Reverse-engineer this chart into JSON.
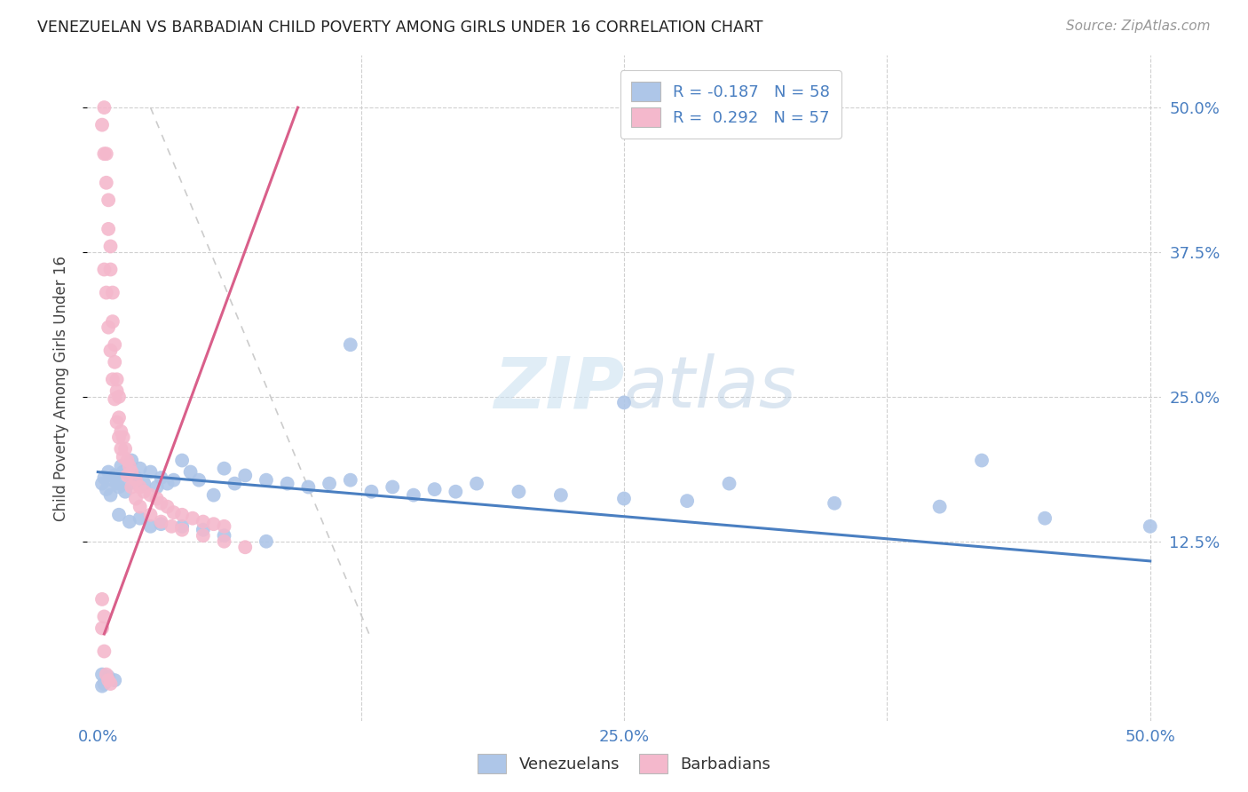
{
  "title": "VENEZUELAN VS BARBADIAN CHILD POVERTY AMONG GIRLS UNDER 16 CORRELATION CHART",
  "source": "Source: ZipAtlas.com",
  "ylabel": "Child Poverty Among Girls Under 16",
  "xlim": [
    -0.005,
    0.505
  ],
  "ylim": [
    -0.03,
    0.545
  ],
  "xticks": [
    0.0,
    0.125,
    0.25,
    0.375,
    0.5
  ],
  "xtick_labels": [
    "0.0%",
    "",
    "25.0%",
    "",
    "50.0%"
  ],
  "ytick_positions": [
    0.125,
    0.25,
    0.375,
    0.5
  ],
  "ytick_labels_right": [
    "12.5%",
    "25.0%",
    "37.5%",
    "50.0%"
  ],
  "watermark": "ZIPatlas",
  "venezuelan_color": "#aec6e8",
  "barbadian_color": "#f4b8cc",
  "venezuelan_line_color": "#4a7fc1",
  "barbadian_line_color": "#d95f8a",
  "dashed_line_color": "#cccccc",
  "venezuelan_scatter": {
    "x": [
      0.002,
      0.003,
      0.004,
      0.005,
      0.006,
      0.007,
      0.008,
      0.009,
      0.01,
      0.011,
      0.012,
      0.013,
      0.015,
      0.016,
      0.018,
      0.02,
      0.022,
      0.025,
      0.028,
      0.03,
      0.033,
      0.036,
      0.04,
      0.044,
      0.048,
      0.055,
      0.06,
      0.065,
      0.07,
      0.08,
      0.09,
      0.1,
      0.11,
      0.12,
      0.13,
      0.14,
      0.15,
      0.16,
      0.17,
      0.18,
      0.2,
      0.22,
      0.25,
      0.28,
      0.3,
      0.35,
      0.4,
      0.45,
      0.5,
      0.01,
      0.015,
      0.02,
      0.025,
      0.03,
      0.04,
      0.05,
      0.06,
      0.08
    ],
    "y": [
      0.175,
      0.18,
      0.17,
      0.185,
      0.165,
      0.178,
      0.182,
      0.175,
      0.172,
      0.19,
      0.185,
      0.168,
      0.175,
      0.195,
      0.18,
      0.188,
      0.175,
      0.185,
      0.172,
      0.18,
      0.175,
      0.178,
      0.195,
      0.185,
      0.178,
      0.165,
      0.188,
      0.175,
      0.182,
      0.178,
      0.175,
      0.172,
      0.175,
      0.178,
      0.168,
      0.172,
      0.165,
      0.17,
      0.168,
      0.175,
      0.168,
      0.165,
      0.162,
      0.16,
      0.175,
      0.158,
      0.155,
      0.145,
      0.138,
      0.148,
      0.142,
      0.145,
      0.138,
      0.14,
      0.138,
      0.135,
      0.13,
      0.125
    ]
  },
  "venezuelan_outliers": {
    "x": [
      0.002,
      0.005,
      0.008,
      0.002,
      0.003
    ],
    "y": [
      0.01,
      0.008,
      0.005,
      0.0,
      0.002
    ]
  },
  "venezuelan_high": {
    "x": [
      0.12,
      0.25,
      0.42
    ],
    "y": [
      0.295,
      0.245,
      0.195
    ]
  },
  "barbadian_scatter": {
    "x": [
      0.002,
      0.003,
      0.003,
      0.004,
      0.004,
      0.005,
      0.005,
      0.006,
      0.006,
      0.007,
      0.007,
      0.008,
      0.008,
      0.009,
      0.009,
      0.01,
      0.01,
      0.011,
      0.012,
      0.013,
      0.014,
      0.015,
      0.016,
      0.018,
      0.02,
      0.022,
      0.025,
      0.028,
      0.03,
      0.033,
      0.036,
      0.04,
      0.045,
      0.05,
      0.055,
      0.06,
      0.003,
      0.004,
      0.005,
      0.006,
      0.007,
      0.008,
      0.009,
      0.01,
      0.011,
      0.012,
      0.014,
      0.016,
      0.018,
      0.02,
      0.025,
      0.03,
      0.035,
      0.04,
      0.05,
      0.06,
      0.07
    ],
    "y": [
      0.485,
      0.5,
      0.46,
      0.46,
      0.435,
      0.42,
      0.395,
      0.38,
      0.36,
      0.34,
      0.315,
      0.295,
      0.28,
      0.265,
      0.255,
      0.25,
      0.232,
      0.22,
      0.215,
      0.205,
      0.195,
      0.19,
      0.185,
      0.178,
      0.172,
      0.168,
      0.165,
      0.162,
      0.158,
      0.155,
      0.15,
      0.148,
      0.145,
      0.142,
      0.14,
      0.138,
      0.36,
      0.34,
      0.31,
      0.29,
      0.265,
      0.248,
      0.228,
      0.215,
      0.205,
      0.198,
      0.182,
      0.172,
      0.162,
      0.155,
      0.148,
      0.142,
      0.138,
      0.135,
      0.13,
      0.125,
      0.12
    ]
  },
  "barbadian_low": {
    "x": [
      0.002,
      0.003,
      0.004,
      0.005,
      0.006,
      0.002,
      0.003
    ],
    "y": [
      0.05,
      0.03,
      0.01,
      0.005,
      0.002,
      0.075,
      0.06
    ]
  },
  "ven_line_x0": 0.0,
  "ven_line_x1": 0.5,
  "ven_line_y0": 0.185,
  "ven_line_y1": 0.108,
  "bar_line_x0": 0.003,
  "bar_line_x1": 0.095,
  "bar_line_y0": 0.045,
  "bar_line_y1": 0.5,
  "dash_line_x0": 0.025,
  "dash_line_x1": 0.13,
  "dash_line_y0": 0.5,
  "dash_line_y1": 0.04
}
